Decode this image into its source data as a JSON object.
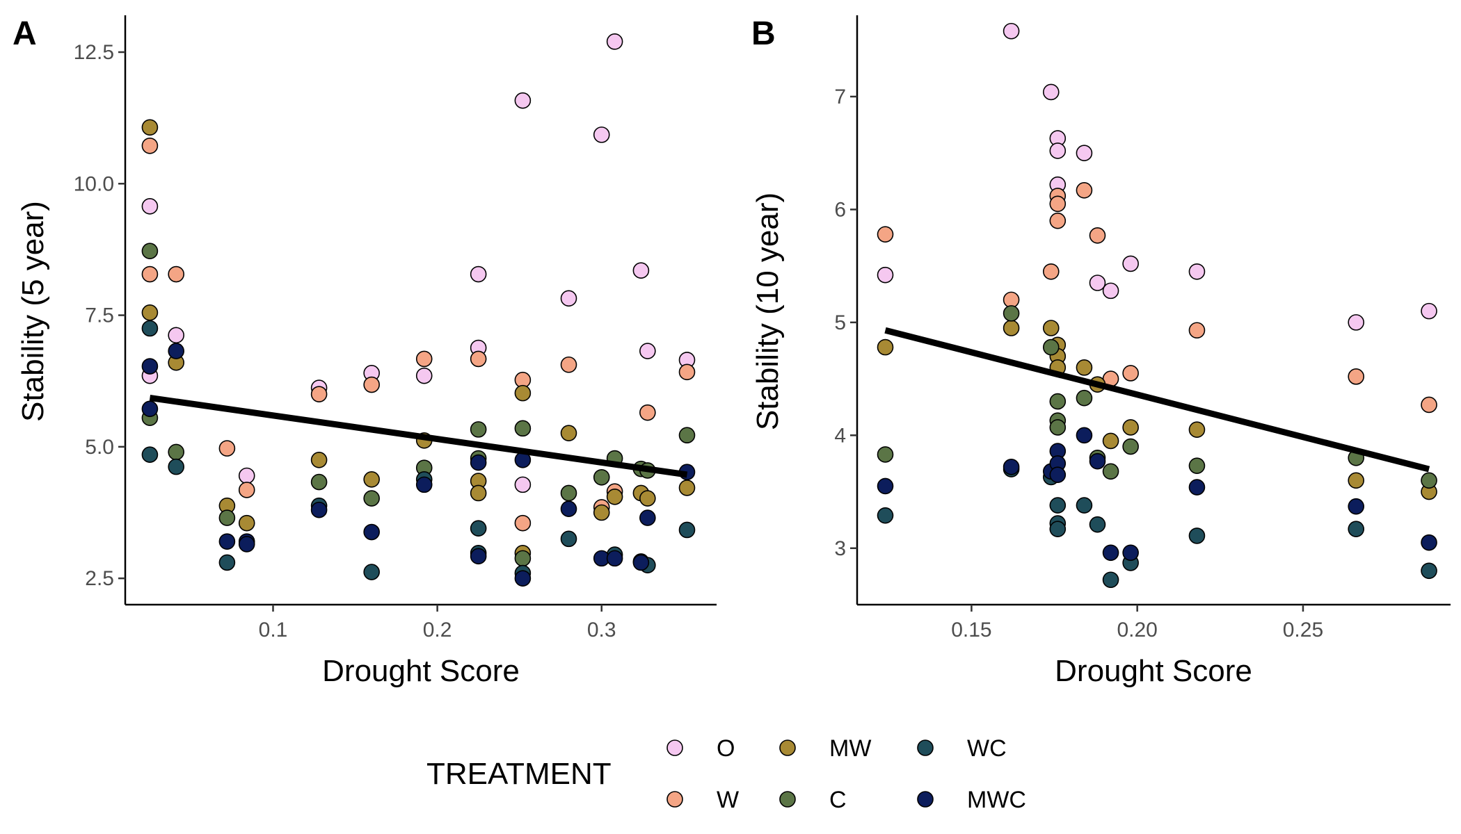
{
  "colors": {
    "O": "#f5c8f0",
    "W": "#f4a585",
    "MW": "#a88a34",
    "C": "#5b7546",
    "WC": "#1f4d5a",
    "MWC": "#0c1d5c",
    "trend": "#000000",
    "axis": "#000000",
    "tick_text": "#4d4d4d"
  },
  "legend": {
    "title": "TREATMENT",
    "items": [
      {
        "key": "O",
        "label": "O"
      },
      {
        "key": "W",
        "label": "W"
      },
      {
        "key": "MW",
        "label": "MW"
      },
      {
        "key": "C",
        "label": "C"
      },
      {
        "key": "WC",
        "label": "WC"
      },
      {
        "key": "MWC",
        "label": "MWC"
      }
    ]
  },
  "chart_data": [
    {
      "type": "scatter",
      "panel_label": "A",
      "xlabel": "Drought Score",
      "ylabel": "Stability (5 year)",
      "xlim": [
        0.01,
        0.37
      ],
      "ylim": [
        2.0,
        13.2
      ],
      "xticks": [
        {
          "value": 0.1,
          "label": "0.1"
        },
        {
          "value": 0.2,
          "label": "0.2"
        },
        {
          "value": 0.3,
          "label": "0.3"
        }
      ],
      "yticks": [
        {
          "value": 2.5,
          "label": "2.5"
        },
        {
          "value": 5.0,
          "label": "5.0"
        },
        {
          "value": 7.5,
          "label": "7.5"
        },
        {
          "value": 10.0,
          "label": "10.0"
        },
        {
          "value": 12.5,
          "label": "12.5"
        }
      ],
      "trend": {
        "x": [
          0.025,
          0.352
        ],
        "y": [
          5.93,
          4.47
        ]
      },
      "series": [
        {
          "name": "O",
          "points": [
            [
              0.025,
              9.57
            ],
            [
              0.025,
              6.35
            ],
            [
              0.041,
              7.12
            ],
            [
              0.084,
              4.45
            ],
            [
              0.128,
              6.12
            ],
            [
              0.16,
              6.4
            ],
            [
              0.192,
              6.35
            ],
            [
              0.225,
              8.28
            ],
            [
              0.225,
              6.88
            ],
            [
              0.252,
              11.58
            ],
            [
              0.252,
              4.28
            ],
            [
              0.28,
              7.82
            ],
            [
              0.3,
              10.93
            ],
            [
              0.308,
              12.7
            ],
            [
              0.324,
              8.35
            ],
            [
              0.328,
              6.82
            ],
            [
              0.352,
              6.65
            ]
          ]
        },
        {
          "name": "W",
          "points": [
            [
              0.025,
              10.72
            ],
            [
              0.025,
              8.28
            ],
            [
              0.041,
              8.28
            ],
            [
              0.072,
              4.97
            ],
            [
              0.084,
              4.18
            ],
            [
              0.128,
              6.0
            ],
            [
              0.16,
              6.18
            ],
            [
              0.192,
              6.67
            ],
            [
              0.225,
              6.67
            ],
            [
              0.252,
              6.27
            ],
            [
              0.252,
              3.55
            ],
            [
              0.28,
              6.56
            ],
            [
              0.3,
              3.85
            ],
            [
              0.308,
              4.15
            ],
            [
              0.328,
              5.65
            ],
            [
              0.352,
              6.42
            ]
          ]
        },
        {
          "name": "MW",
          "points": [
            [
              0.025,
              11.07
            ],
            [
              0.025,
              7.55
            ],
            [
              0.041,
              6.6
            ],
            [
              0.072,
              3.88
            ],
            [
              0.084,
              3.55
            ],
            [
              0.128,
              4.75
            ],
            [
              0.16,
              4.38
            ],
            [
              0.192,
              5.12
            ],
            [
              0.225,
              4.35
            ],
            [
              0.225,
              4.12
            ],
            [
              0.252,
              6.02
            ],
            [
              0.252,
              2.98
            ],
            [
              0.28,
              5.26
            ],
            [
              0.3,
              3.75
            ],
            [
              0.308,
              4.05
            ],
            [
              0.324,
              4.12
            ],
            [
              0.328,
              4.02
            ],
            [
              0.352,
              4.22
            ]
          ]
        },
        {
          "name": "C",
          "points": [
            [
              0.025,
              8.72
            ],
            [
              0.025,
              5.55
            ],
            [
              0.041,
              4.9
            ],
            [
              0.072,
              3.65
            ],
            [
              0.128,
              4.33
            ],
            [
              0.16,
              4.02
            ],
            [
              0.192,
              4.6
            ],
            [
              0.225,
              5.33
            ],
            [
              0.225,
              4.78
            ],
            [
              0.252,
              5.35
            ],
            [
              0.252,
              2.88
            ],
            [
              0.28,
              4.12
            ],
            [
              0.3,
              4.42
            ],
            [
              0.308,
              4.78
            ],
            [
              0.324,
              4.58
            ],
            [
              0.328,
              4.55
            ],
            [
              0.352,
              5.22
            ]
          ]
        },
        {
          "name": "WC",
          "points": [
            [
              0.025,
              7.25
            ],
            [
              0.025,
              4.85
            ],
            [
              0.041,
              4.62
            ],
            [
              0.072,
              2.8
            ],
            [
              0.128,
              3.88
            ],
            [
              0.16,
              2.62
            ],
            [
              0.192,
              4.38
            ],
            [
              0.225,
              3.45
            ],
            [
              0.225,
              2.98
            ],
            [
              0.252,
              2.6
            ],
            [
              0.28,
              3.25
            ],
            [
              0.308,
              2.95
            ],
            [
              0.324,
              2.82
            ],
            [
              0.328,
              2.75
            ],
            [
              0.352,
              3.42
            ]
          ]
        },
        {
          "name": "MWC",
          "points": [
            [
              0.025,
              6.53
            ],
            [
              0.025,
              5.72
            ],
            [
              0.041,
              6.82
            ],
            [
              0.072,
              3.2
            ],
            [
              0.084,
              3.2
            ],
            [
              0.084,
              3.15
            ],
            [
              0.128,
              3.8
            ],
            [
              0.16,
              3.38
            ],
            [
              0.192,
              4.28
            ],
            [
              0.225,
              4.7
            ],
            [
              0.225,
              2.92
            ],
            [
              0.252,
              4.75
            ],
            [
              0.252,
              2.5
            ],
            [
              0.28,
              3.82
            ],
            [
              0.3,
              2.88
            ],
            [
              0.308,
              2.88
            ],
            [
              0.324,
              2.8
            ],
            [
              0.328,
              3.65
            ],
            [
              0.352,
              4.52
            ]
          ]
        }
      ]
    },
    {
      "type": "scatter",
      "panel_label": "B",
      "xlabel": "Drought Score",
      "ylabel": "Stability (10 year)",
      "xlim": [
        0.1155,
        0.2945
      ],
      "ylim": [
        2.5,
        7.72
      ],
      "xticks": [
        {
          "value": 0.15,
          "label": "0.15"
        },
        {
          "value": 0.2,
          "label": "0.20"
        },
        {
          "value": 0.25,
          "label": "0.25"
        }
      ],
      "yticks": [
        {
          "value": 3,
          "label": "3"
        },
        {
          "value": 4,
          "label": "4"
        },
        {
          "value": 5,
          "label": "5"
        },
        {
          "value": 6,
          "label": "6"
        },
        {
          "value": 7,
          "label": "7"
        }
      ],
      "trend": {
        "x": [
          0.124,
          0.288
        ],
        "y": [
          4.93,
          3.7
        ]
      },
      "series": [
        {
          "name": "O",
          "points": [
            [
              0.124,
              5.42
            ],
            [
              0.162,
              7.58
            ],
            [
              0.174,
              7.04
            ],
            [
              0.176,
              6.63
            ],
            [
              0.176,
              6.52
            ],
            [
              0.176,
              6.22
            ],
            [
              0.184,
              6.5
            ],
            [
              0.188,
              5.35
            ],
            [
              0.192,
              5.28
            ],
            [
              0.198,
              5.52
            ],
            [
              0.218,
              5.45
            ],
            [
              0.266,
              5.0
            ],
            [
              0.288,
              5.1
            ]
          ]
        },
        {
          "name": "W",
          "points": [
            [
              0.124,
              5.78
            ],
            [
              0.162,
              5.2
            ],
            [
              0.174,
              5.45
            ],
            [
              0.176,
              6.12
            ],
            [
              0.176,
              6.05
            ],
            [
              0.176,
              5.9
            ],
            [
              0.184,
              6.17
            ],
            [
              0.188,
              5.77
            ],
            [
              0.192,
              4.5
            ],
            [
              0.198,
              4.55
            ],
            [
              0.218,
              4.93
            ],
            [
              0.266,
              4.52
            ],
            [
              0.288,
              4.27
            ]
          ]
        },
        {
          "name": "MW",
          "points": [
            [
              0.124,
              4.78
            ],
            [
              0.162,
              4.95
            ],
            [
              0.174,
              4.95
            ],
            [
              0.176,
              4.8
            ],
            [
              0.176,
              4.7
            ],
            [
              0.176,
              4.6
            ],
            [
              0.184,
              4.6
            ],
            [
              0.188,
              4.45
            ],
            [
              0.192,
              3.95
            ],
            [
              0.198,
              4.07
            ],
            [
              0.218,
              4.05
            ],
            [
              0.266,
              3.6
            ],
            [
              0.288,
              3.5
            ]
          ]
        },
        {
          "name": "C",
          "points": [
            [
              0.124,
              3.83
            ],
            [
              0.162,
              5.08
            ],
            [
              0.174,
              4.78
            ],
            [
              0.176,
              4.3
            ],
            [
              0.176,
              4.13
            ],
            [
              0.176,
              4.07
            ],
            [
              0.184,
              4.33
            ],
            [
              0.188,
              3.8
            ],
            [
              0.192,
              3.68
            ],
            [
              0.198,
              3.9
            ],
            [
              0.218,
              3.73
            ],
            [
              0.266,
              3.8
            ],
            [
              0.288,
              3.6
            ]
          ]
        },
        {
          "name": "WC",
          "points": [
            [
              0.124,
              3.29
            ],
            [
              0.162,
              3.7
            ],
            [
              0.174,
              3.63
            ],
            [
              0.176,
              3.38
            ],
            [
              0.176,
              3.22
            ],
            [
              0.176,
              3.17
            ],
            [
              0.184,
              3.38
            ],
            [
              0.188,
              3.21
            ],
            [
              0.192,
              2.72
            ],
            [
              0.198,
              2.87
            ],
            [
              0.218,
              3.11
            ],
            [
              0.266,
              3.17
            ],
            [
              0.288,
              2.8
            ]
          ]
        },
        {
          "name": "MWC",
          "points": [
            [
              0.124,
              3.55
            ],
            [
              0.162,
              3.72
            ],
            [
              0.174,
              3.68
            ],
            [
              0.176,
              3.86
            ],
            [
              0.176,
              3.75
            ],
            [
              0.176,
              3.65
            ],
            [
              0.184,
              4.0
            ],
            [
              0.188,
              3.77
            ],
            [
              0.192,
              2.96
            ],
            [
              0.198,
              2.96
            ],
            [
              0.218,
              3.54
            ],
            [
              0.266,
              3.37
            ],
            [
              0.288,
              3.05
            ]
          ]
        }
      ]
    }
  ]
}
